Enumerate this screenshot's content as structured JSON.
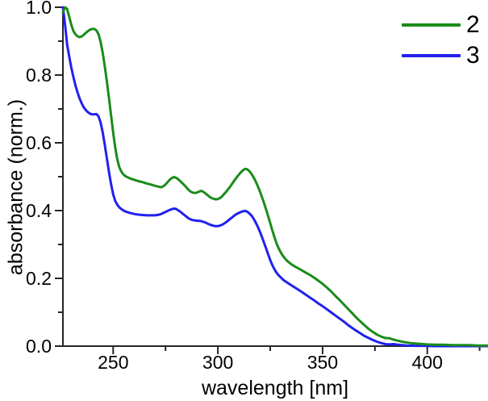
{
  "chart_data": {
    "type": "line",
    "title": "",
    "xlabel": "wavelength [nm]",
    "ylabel": "absorbance (norm.)",
    "xlim": [
      226,
      429
    ],
    "ylim": [
      0,
      1.0
    ],
    "grid": false,
    "legend_position": "top-right",
    "axis_color": "#262626",
    "text_color": "#000000",
    "x_major_ticks": [
      250,
      300,
      350,
      400
    ],
    "x_tick_labels": [
      "250",
      "300",
      "350",
      "400"
    ],
    "x_minor_ticks": [
      275,
      325,
      375,
      425
    ],
    "y_major_ticks": [
      0,
      0.2,
      0.4,
      0.6,
      0.8,
      1.0
    ],
    "y_tick_labels": [
      "0.0",
      "0.2",
      "0.4",
      "0.6",
      "0.8",
      "1.0"
    ],
    "y_minor_ticks": [
      0.1,
      0.3,
      0.5,
      0.7,
      0.9
    ],
    "series": [
      {
        "name": "2",
        "color": "#1a8c1a",
        "points": [
          [
            226,
            0.985
          ],
          [
            227,
            1.0
          ],
          [
            228,
            0.995
          ],
          [
            229,
            0.972
          ],
          [
            230,
            0.948
          ],
          [
            231,
            0.93
          ],
          [
            232,
            0.92
          ],
          [
            233,
            0.914
          ],
          [
            234,
            0.912
          ],
          [
            235,
            0.914
          ],
          [
            236,
            0.919
          ],
          [
            237,
            0.925
          ],
          [
            238,
            0.93
          ],
          [
            239,
            0.934
          ],
          [
            240,
            0.936
          ],
          [
            241,
            0.936
          ],
          [
            242,
            0.932
          ],
          [
            243,
            0.921
          ],
          [
            244,
            0.898
          ],
          [
            245,
            0.866
          ],
          [
            246,
            0.826
          ],
          [
            247,
            0.781
          ],
          [
            248,
            0.732
          ],
          [
            249,
            0.681
          ],
          [
            250,
            0.63
          ],
          [
            251,
            0.585
          ],
          [
            252,
            0.55
          ],
          [
            253,
            0.527
          ],
          [
            254,
            0.514
          ],
          [
            255,
            0.506
          ],
          [
            256,
            0.501
          ],
          [
            257,
            0.498
          ],
          [
            258,
            0.495
          ],
          [
            260,
            0.491
          ],
          [
            262,
            0.487
          ],
          [
            264,
            0.484
          ],
          [
            266,
            0.48
          ],
          [
            268,
            0.477
          ],
          [
            270,
            0.473
          ],
          [
            272,
            0.47
          ],
          [
            273,
            0.469
          ],
          [
            274,
            0.472
          ],
          [
            275,
            0.477
          ],
          [
            276,
            0.484
          ],
          [
            277,
            0.491
          ],
          [
            278,
            0.496
          ],
          [
            279,
            0.499
          ],
          [
            280,
            0.497
          ],
          [
            281,
            0.493
          ],
          [
            282,
            0.487
          ],
          [
            283,
            0.481
          ],
          [
            284,
            0.475
          ],
          [
            285,
            0.468
          ],
          [
            286,
            0.461
          ],
          [
            287,
            0.456
          ],
          [
            288,
            0.453
          ],
          [
            289,
            0.452
          ],
          [
            290,
            0.453
          ],
          [
            291,
            0.456
          ],
          [
            292,
            0.458
          ],
          [
            293,
            0.456
          ],
          [
            294,
            0.451
          ],
          [
            295,
            0.446
          ],
          [
            296,
            0.441
          ],
          [
            297,
            0.437
          ],
          [
            298,
            0.435
          ],
          [
            299,
            0.433
          ],
          [
            300,
            0.434
          ],
          [
            301,
            0.437
          ],
          [
            302,
            0.442
          ],
          [
            303,
            0.449
          ],
          [
            304,
            0.456
          ],
          [
            305,
            0.464
          ],
          [
            306,
            0.472
          ],
          [
            307,
            0.481
          ],
          [
            308,
            0.49
          ],
          [
            309,
            0.498
          ],
          [
            310,
            0.506
          ],
          [
            311,
            0.513
          ],
          [
            312,
            0.519
          ],
          [
            313,
            0.523
          ],
          [
            314,
            0.522
          ],
          [
            315,
            0.517
          ],
          [
            316,
            0.509
          ],
          [
            317,
            0.499
          ],
          [
            318,
            0.487
          ],
          [
            319,
            0.473
          ],
          [
            320,
            0.458
          ],
          [
            321,
            0.441
          ],
          [
            322,
            0.423
          ],
          [
            323,
            0.404
          ],
          [
            324,
            0.384
          ],
          [
            325,
            0.363
          ],
          [
            326,
            0.342
          ],
          [
            327,
            0.322
          ],
          [
            328,
            0.303
          ],
          [
            329,
            0.289
          ],
          [
            330,
            0.277
          ],
          [
            331,
            0.267
          ],
          [
            332,
            0.259
          ],
          [
            333,
            0.252
          ],
          [
            334,
            0.247
          ],
          [
            335,
            0.242
          ],
          [
            336,
            0.238
          ],
          [
            337,
            0.234
          ],
          [
            338,
            0.231
          ],
          [
            340,
            0.224
          ],
          [
            342,
            0.217
          ],
          [
            344,
            0.21
          ],
          [
            346,
            0.202
          ],
          [
            348,
            0.193
          ],
          [
            350,
            0.184
          ],
          [
            352,
            0.173
          ],
          [
            354,
            0.162
          ],
          [
            356,
            0.149
          ],
          [
            358,
            0.137
          ],
          [
            360,
            0.124
          ],
          [
            362,
            0.111
          ],
          [
            364,
            0.098
          ],
          [
            366,
            0.085
          ],
          [
            368,
            0.073
          ],
          [
            370,
            0.062
          ],
          [
            372,
            0.051
          ],
          [
            374,
            0.042
          ],
          [
            376,
            0.034
          ],
          [
            378,
            0.028
          ],
          [
            380,
            0.024
          ],
          [
            382,
            0.023
          ],
          [
            384,
            0.019
          ],
          [
            386,
            0.016
          ],
          [
            388,
            0.013
          ],
          [
            390,
            0.011
          ],
          [
            392,
            0.009
          ],
          [
            394,
            0.008
          ],
          [
            396,
            0.007
          ],
          [
            398,
            0.006
          ],
          [
            400,
            0.005
          ],
          [
            404,
            0.004
          ],
          [
            408,
            0.004
          ],
          [
            412,
            0.003
          ],
          [
            416,
            0.003
          ],
          [
            420,
            0.003
          ],
          [
            424,
            0.002
          ],
          [
            429,
            0.002
          ]
        ]
      },
      {
        "name": "3",
        "color": "#2020f0",
        "points": [
          [
            226,
            1.0
          ],
          [
            227,
            0.95
          ],
          [
            228,
            0.89
          ],
          [
            229,
            0.855
          ],
          [
            230,
            0.822
          ],
          [
            231,
            0.794
          ],
          [
            232,
            0.769
          ],
          [
            233,
            0.748
          ],
          [
            234,
            0.73
          ],
          [
            235,
            0.716
          ],
          [
            236,
            0.704
          ],
          [
            237,
            0.696
          ],
          [
            238,
            0.69
          ],
          [
            239,
            0.686
          ],
          [
            240,
            0.684
          ],
          [
            241,
            0.684
          ],
          [
            242,
            0.685
          ],
          [
            243,
            0.678
          ],
          [
            244,
            0.66
          ],
          [
            245,
            0.631
          ],
          [
            246,
            0.594
          ],
          [
            247,
            0.554
          ],
          [
            248,
            0.514
          ],
          [
            249,
            0.478
          ],
          [
            250,
            0.448
          ],
          [
            251,
            0.428
          ],
          [
            252,
            0.417
          ],
          [
            253,
            0.409
          ],
          [
            254,
            0.404
          ],
          [
            255,
            0.4
          ],
          [
            256,
            0.397
          ],
          [
            257,
            0.395
          ],
          [
            258,
            0.393
          ],
          [
            260,
            0.39
          ],
          [
            262,
            0.388
          ],
          [
            264,
            0.387
          ],
          [
            266,
            0.386
          ],
          [
            268,
            0.386
          ],
          [
            270,
            0.386
          ],
          [
            272,
            0.388
          ],
          [
            273,
            0.39
          ],
          [
            274,
            0.393
          ],
          [
            275,
            0.396
          ],
          [
            276,
            0.399
          ],
          [
            277,
            0.402
          ],
          [
            278,
            0.404
          ],
          [
            279,
            0.406
          ],
          [
            280,
            0.405
          ],
          [
            281,
            0.401
          ],
          [
            282,
            0.397
          ],
          [
            283,
            0.392
          ],
          [
            284,
            0.387
          ],
          [
            285,
            0.382
          ],
          [
            286,
            0.377
          ],
          [
            287,
            0.374
          ],
          [
            288,
            0.372
          ],
          [
            289,
            0.371
          ],
          [
            290,
            0.37
          ],
          [
            291,
            0.37
          ],
          [
            292,
            0.369
          ],
          [
            293,
            0.367
          ],
          [
            294,
            0.365
          ],
          [
            295,
            0.362
          ],
          [
            296,
            0.359
          ],
          [
            297,
            0.357
          ],
          [
            298,
            0.355
          ],
          [
            299,
            0.354
          ],
          [
            300,
            0.354
          ],
          [
            301,
            0.356
          ],
          [
            302,
            0.358
          ],
          [
            303,
            0.362
          ],
          [
            304,
            0.366
          ],
          [
            305,
            0.371
          ],
          [
            306,
            0.376
          ],
          [
            307,
            0.381
          ],
          [
            308,
            0.386
          ],
          [
            309,
            0.39
          ],
          [
            310,
            0.393
          ],
          [
            311,
            0.396
          ],
          [
            312,
            0.398
          ],
          [
            313,
            0.399
          ],
          [
            314,
            0.397
          ],
          [
            315,
            0.392
          ],
          [
            316,
            0.386
          ],
          [
            317,
            0.377
          ],
          [
            318,
            0.366
          ],
          [
            319,
            0.353
          ],
          [
            320,
            0.339
          ],
          [
            321,
            0.323
          ],
          [
            322,
            0.306
          ],
          [
            323,
            0.289
          ],
          [
            324,
            0.271
          ],
          [
            325,
            0.254
          ],
          [
            326,
            0.239
          ],
          [
            327,
            0.227
          ],
          [
            328,
            0.217
          ],
          [
            329,
            0.209
          ],
          [
            330,
            0.203
          ],
          [
            331,
            0.197
          ],
          [
            332,
            0.192
          ],
          [
            333,
            0.188
          ],
          [
            334,
            0.184
          ],
          [
            336,
            0.176
          ],
          [
            338,
            0.168
          ],
          [
            340,
            0.16
          ],
          [
            342,
            0.152
          ],
          [
            344,
            0.143
          ],
          [
            346,
            0.135
          ],
          [
            348,
            0.126
          ],
          [
            350,
            0.118
          ],
          [
            352,
            0.109
          ],
          [
            354,
            0.1
          ],
          [
            356,
            0.091
          ],
          [
            358,
            0.082
          ],
          [
            360,
            0.073
          ],
          [
            362,
            0.063
          ],
          [
            364,
            0.054
          ],
          [
            366,
            0.046
          ],
          [
            368,
            0.038
          ],
          [
            370,
            0.03
          ],
          [
            372,
            0.024
          ],
          [
            374,
            0.018
          ],
          [
            376,
            0.013
          ],
          [
            378,
            0.009
          ],
          [
            380,
            0.006
          ],
          [
            382,
            0.005
          ],
          [
            384,
            0.006
          ],
          [
            386,
            0.004
          ],
          [
            388,
            0.003
          ],
          [
            390,
            0.002
          ],
          [
            394,
            0.001
          ],
          [
            398,
            0.001
          ],
          [
            404,
            0.0
          ],
          [
            410,
            0.0
          ],
          [
            420,
            0.0
          ],
          [
            429,
            0.0
          ]
        ]
      }
    ]
  },
  "legend": {
    "entries": [
      {
        "label": "2",
        "color": "#1a8c1a"
      },
      {
        "label": "3",
        "color": "#2020f0"
      }
    ]
  }
}
